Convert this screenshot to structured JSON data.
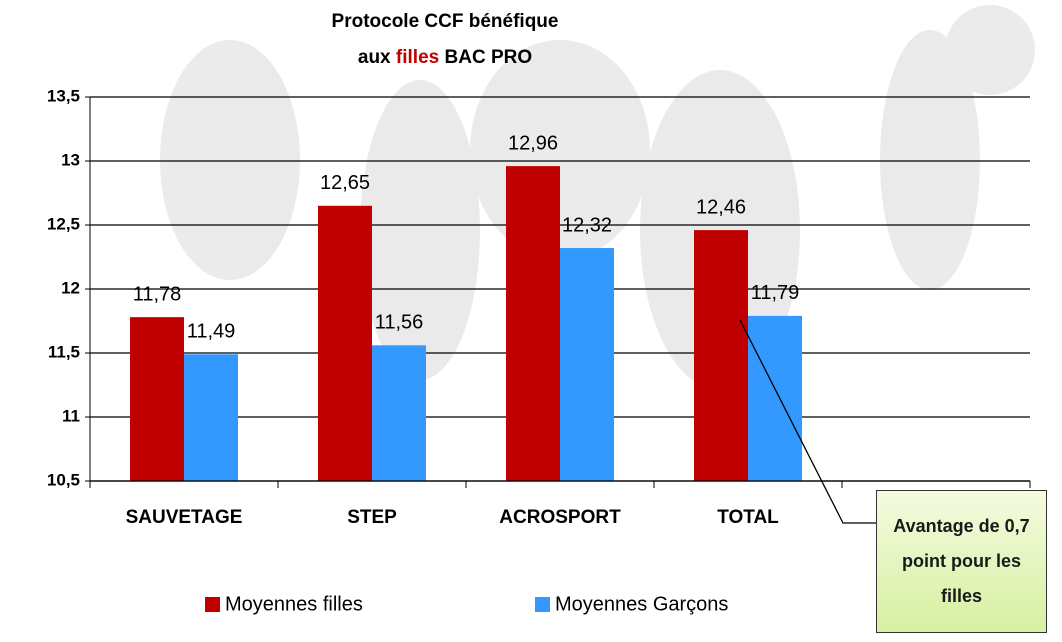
{
  "chart_data": {
    "type": "bar",
    "title_parts": [
      "Protocole CCF bénéfique",
      "aux",
      "filles",
      "BAC PRO"
    ],
    "title_highlight_color": "#c00000",
    "categories": [
      "SAUVETAGE",
      "STEP",
      "ACROSPORT",
      "TOTAL",
      null
    ],
    "series": [
      {
        "name": "Moyennes filles",
        "color": "#c00000",
        "values": [
          11.78,
          12.65,
          12.96,
          12.46,
          null
        ],
        "value_labels": [
          "11,78",
          "12,65",
          "12,96",
          "12,46",
          null
        ]
      },
      {
        "name": "Moyennes Garçons",
        "color": "#3399ff",
        "values": [
          11.49,
          11.56,
          12.32,
          11.79,
          null
        ],
        "value_labels": [
          "11,49",
          "11,56",
          "12,32",
          "11,79",
          null
        ]
      }
    ],
    "ylim": [
      10.5,
      13.5
    ],
    "yticks": [
      {
        "value": 10.5,
        "label": "10,5"
      },
      11,
      {
        "value": 11.5,
        "label": "11,5"
      },
      12,
      {
        "value": 12.5,
        "label": "12,5"
      },
      13,
      {
        "value": 13.5,
        "label": "13,5"
      }
    ],
    "grid": true,
    "legend": "bottom",
    "annotation": "Avantage de 0,7 point pour les filles"
  }
}
